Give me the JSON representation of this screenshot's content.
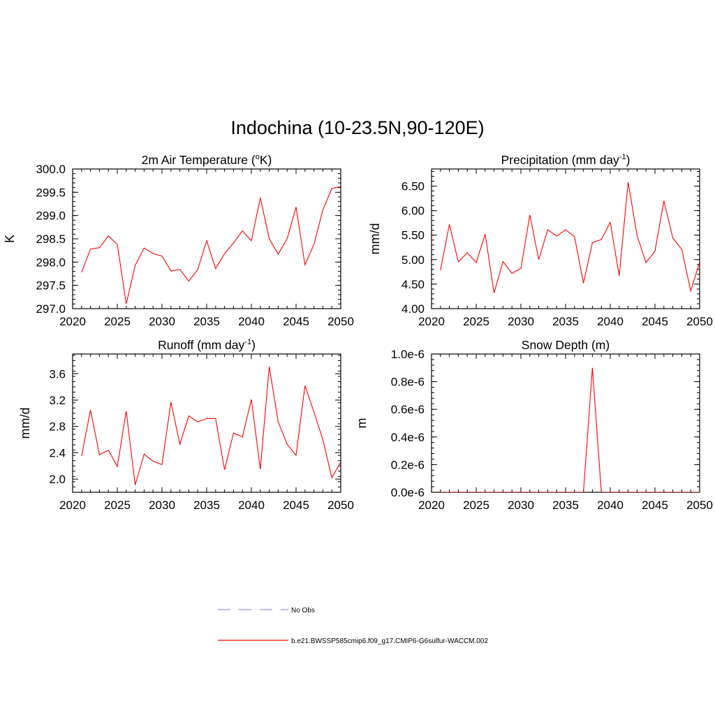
{
  "figure": {
    "title": "Indochina (10-23.5N,90-120E)"
  },
  "legend": [
    {
      "label": "No Obs",
      "color": "#9999dd",
      "style": "dashed"
    },
    {
      "label": "b.e21.BWSSP585cmip6.f09_g17.CMIP6-G6sulfur-WACCM.002",
      "color": "#ff0000",
      "style": "solid"
    }
  ],
  "chart_data": [
    {
      "type": "line",
      "title_base": "2m Air Temperature (",
      "title_sup": "o",
      "title_end": "K)",
      "ylabel": "K",
      "xlim": [
        2020,
        2050
      ],
      "ylim": [
        297.0,
        300.0
      ],
      "xticks": [
        2020,
        2025,
        2030,
        2035,
        2040,
        2045,
        2050
      ],
      "yticks": [
        "297.0",
        "297.5",
        "298.0",
        "298.5",
        "299.0",
        "299.5",
        "300.0"
      ],
      "ytick_values": [
        297.0,
        297.5,
        298.0,
        298.5,
        299.0,
        299.5,
        300.0
      ],
      "series": [
        {
          "color": "#ff0000",
          "x": [
            2021,
            2022,
            2023,
            2024,
            2025,
            2026,
            2027,
            2028,
            2029,
            2030,
            2031,
            2032,
            2033,
            2034,
            2035,
            2036,
            2037,
            2038,
            2039,
            2040,
            2041,
            2042,
            2043,
            2044,
            2045,
            2046,
            2047,
            2048,
            2049,
            2050
          ],
          "y": [
            297.78,
            298.28,
            298.31,
            298.56,
            298.38,
            297.1,
            297.93,
            298.3,
            298.18,
            298.13,
            297.81,
            297.84,
            297.59,
            297.84,
            298.46,
            297.86,
            298.18,
            298.41,
            298.67,
            298.46,
            299.38,
            298.5,
            298.17,
            298.5,
            299.18,
            297.94,
            298.38,
            299.12,
            299.58,
            299.62
          ]
        }
      ]
    },
    {
      "type": "line",
      "title_base": "Precipitation (mm day",
      "title_sup": "-1",
      "title_end": ")",
      "ylabel": "mm/d",
      "xlim": [
        2020,
        2050
      ],
      "ylim": [
        4.0,
        6.85
      ],
      "xticks": [
        2020,
        2025,
        2030,
        2035,
        2040,
        2045,
        2050
      ],
      "yticks": [
        "4.00",
        "4.50",
        "5.00",
        "5.50",
        "6.00",
        "6.50"
      ],
      "ytick_values": [
        4.0,
        4.5,
        5.0,
        5.5,
        6.0,
        6.5
      ],
      "series": [
        {
          "color": "#ff0000",
          "x": [
            2021,
            2022,
            2023,
            2024,
            2025,
            2026,
            2027,
            2028,
            2029,
            2030,
            2031,
            2032,
            2033,
            2034,
            2035,
            2036,
            2037,
            2038,
            2039,
            2040,
            2041,
            2042,
            2043,
            2044,
            2045,
            2046,
            2047,
            2048,
            2049,
            2050
          ],
          "y": [
            4.78,
            5.72,
            4.95,
            5.14,
            4.94,
            5.52,
            4.32,
            4.96,
            4.72,
            4.82,
            5.91,
            5.0,
            5.61,
            5.48,
            5.61,
            5.47,
            4.52,
            5.35,
            5.41,
            5.76,
            4.67,
            6.58,
            5.49,
            4.94,
            5.17,
            6.2,
            5.44,
            5.21,
            4.36,
            4.95
          ]
        }
      ]
    },
    {
      "type": "line",
      "title_base": "Runoff (mm day",
      "title_sup": "-1",
      "title_end": ")",
      "ylabel": "mm/d",
      "xlim": [
        2020,
        2050
      ],
      "ylim": [
        1.8,
        3.9
      ],
      "xticks": [
        2020,
        2025,
        2030,
        2035,
        2040,
        2045,
        2050
      ],
      "yticks": [
        "2.0",
        "2.4",
        "2.8",
        "3.2",
        "3.6"
      ],
      "ytick_values": [
        2.0,
        2.4,
        2.8,
        3.2,
        3.6
      ],
      "series": [
        {
          "color": "#ff0000",
          "x": [
            2021,
            2022,
            2023,
            2024,
            2025,
            2026,
            2027,
            2028,
            2029,
            2030,
            2031,
            2032,
            2033,
            2034,
            2035,
            2036,
            2037,
            2038,
            2039,
            2040,
            2041,
            2042,
            2043,
            2044,
            2045,
            2046,
            2047,
            2048,
            2049,
            2050
          ],
          "y": [
            2.35,
            3.05,
            2.37,
            2.44,
            2.19,
            3.03,
            1.91,
            2.38,
            2.27,
            2.22,
            3.17,
            2.53,
            2.96,
            2.87,
            2.92,
            2.92,
            2.14,
            2.7,
            2.64,
            3.21,
            2.15,
            3.71,
            2.87,
            2.53,
            2.36,
            3.42,
            3.02,
            2.6,
            2.02,
            2.26
          ]
        }
      ]
    },
    {
      "type": "line",
      "title_base": "Snow Depth (m)",
      "title_sup": "",
      "title_end": "",
      "ylabel": "m",
      "xlim": [
        2020,
        2050
      ],
      "ylim": [
        0.0,
        1e-06
      ],
      "xticks": [
        2020,
        2025,
        2030,
        2035,
        2040,
        2045,
        2050
      ],
      "yticks": [
        "0.0e-6",
        "0.2e-6",
        "0.4e-6",
        "0.6e-6",
        "0.8e-6",
        "1.0e-6"
      ],
      "ytick_values": [
        0.0,
        2e-07,
        4e-07,
        6e-07,
        8e-07,
        1e-06
      ],
      "series": [
        {
          "color": "#ff0000",
          "x": [
            2021,
            2022,
            2023,
            2024,
            2025,
            2026,
            2027,
            2028,
            2029,
            2030,
            2031,
            2032,
            2033,
            2034,
            2035,
            2036,
            2037,
            2038,
            2039,
            2040,
            2041,
            2042,
            2043,
            2044,
            2045,
            2046,
            2047,
            2048,
            2049,
            2050
          ],
          "y": [
            0,
            0,
            0,
            0,
            0,
            0,
            0,
            0,
            0,
            0,
            0,
            0,
            0,
            0,
            0,
            0,
            0,
            9e-07,
            0,
            0,
            0,
            0,
            0,
            0,
            0,
            0,
            0,
            0,
            0,
            0
          ]
        }
      ]
    }
  ]
}
